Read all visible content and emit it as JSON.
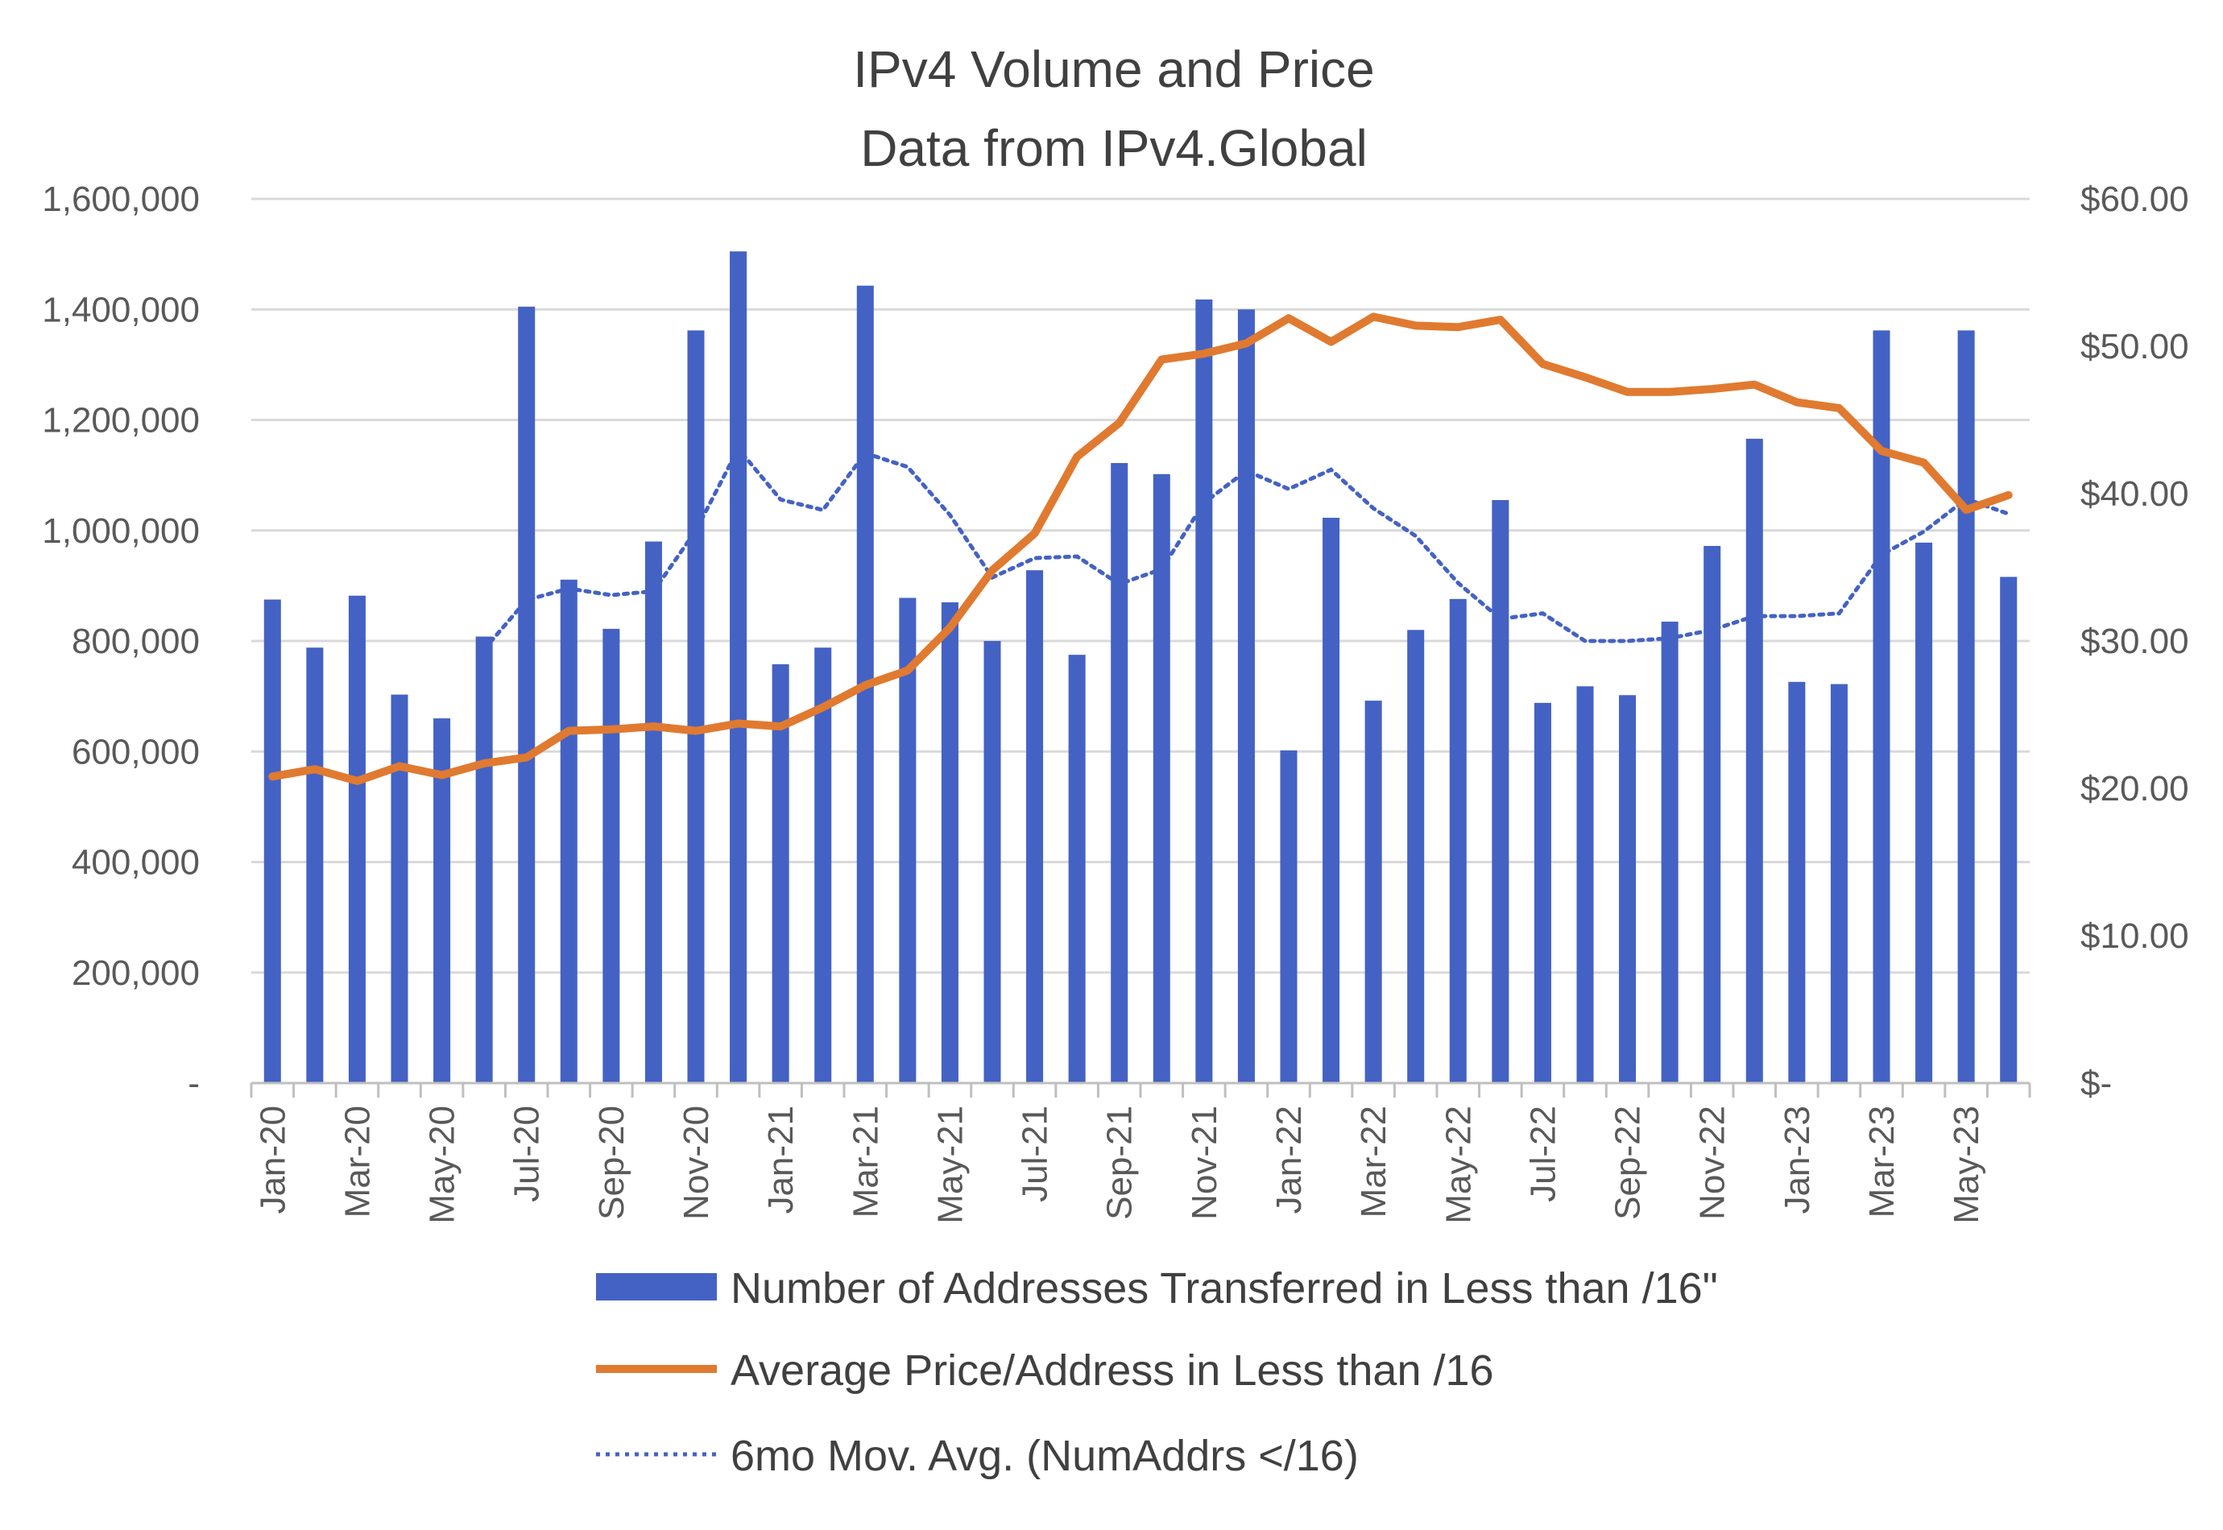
{
  "chart_data": {
    "type": "bar",
    "title": [
      "IPv4 Volume and Price",
      "Data from IPv4.Global"
    ],
    "categories": [
      "Jan-20",
      "Feb-20",
      "Mar-20",
      "Apr-20",
      "May-20",
      "Jun-20",
      "Jul-20",
      "Aug-20",
      "Sep-20",
      "Oct-20",
      "Nov-20",
      "Dec-20",
      "Jan-21",
      "Feb-21",
      "Mar-21",
      "Apr-21",
      "May-21",
      "Jun-21",
      "Jul-21",
      "Aug-21",
      "Sep-21",
      "Oct-21",
      "Nov-21",
      "Dec-21",
      "Jan-22",
      "Feb-22",
      "Mar-22",
      "Apr-22",
      "May-22",
      "Jun-22",
      "Jul-22",
      "Aug-22",
      "Sep-22",
      "Oct-22",
      "Nov-22",
      "Dec-22",
      "Jan-23",
      "Feb-23",
      "Mar-23",
      "Apr-23",
      "May-23",
      "Jun-23"
    ],
    "x_tick_labels": [
      "Jan-20",
      "Mar-20",
      "May-20",
      "Jul-20",
      "Sep-20",
      "Nov-20",
      "Jan-21",
      "Mar-21",
      "May-21",
      "Jul-21",
      "Sep-21",
      "Nov-21",
      "Jan-22",
      "Mar-22",
      "May-22",
      "Jul-22",
      "Sep-22",
      "Nov-22",
      "Jan-23",
      "Mar-23",
      "May-23"
    ],
    "y_left": {
      "min": 0,
      "max": 1600000,
      "tick_labels": [
        "-",
        "200,000",
        "400,000",
        "600,000",
        "800,000",
        "1,000,000",
        "1,200,000",
        "1,400,000",
        "1,600,000"
      ],
      "tick_values": [
        0,
        200000,
        400000,
        600000,
        800000,
        1000000,
        1200000,
        1400000,
        1600000
      ]
    },
    "y_right": {
      "min": 0,
      "max": 60,
      "tick_labels": [
        "$-",
        "$10.00",
        "$20.00",
        "$30.00",
        "$40.00",
        "$50.00",
        "$60.00"
      ],
      "tick_values": [
        0,
        10,
        20,
        30,
        40,
        50,
        60
      ]
    },
    "grid": true,
    "legend_position": "bottom",
    "series": [
      {
        "name": "Number of Addresses Transferred in Less than /16\"",
        "type": "bar",
        "axis": "left",
        "color": "#4462C4",
        "values": [
          875000,
          788000,
          882000,
          703000,
          660000,
          808000,
          1405000,
          911000,
          822000,
          980000,
          1362000,
          1505000,
          758000,
          788000,
          1443000,
          878000,
          870000,
          800000,
          928000,
          775000,
          1122000,
          1102000,
          1418000,
          1400000,
          602000,
          1023000,
          692000,
          820000,
          876000,
          1055000,
          688000,
          718000,
          702000,
          835000,
          972000,
          1166000,
          726000,
          722000,
          1362000,
          978000,
          1362000,
          916000
        ]
      },
      {
        "name": "Average Price/Address in Less than /16",
        "type": "line",
        "axis": "right",
        "color": "#E07A30",
        "values": [
          20.8,
          21.3,
          20.5,
          21.5,
          20.9,
          21.7,
          22.1,
          23.9,
          24.0,
          24.2,
          23.9,
          24.4,
          24.2,
          25.5,
          27.0,
          28.0,
          30.9,
          34.8,
          37.3,
          42.5,
          44.8,
          49.1,
          49.5,
          50.2,
          51.9,
          50.3,
          52.0,
          51.4,
          51.3,
          51.8,
          48.8,
          47.9,
          46.9,
          46.9,
          47.1,
          47.4,
          46.2,
          45.8,
          42.9,
          42.1,
          38.9,
          39.9
        ]
      },
      {
        "name": "6mo Mov. Avg. (NumAddrs </16)",
        "type": "line",
        "style": "dotted",
        "axis": "left",
        "color": "#4462C4",
        "values": [
          null,
          null,
          null,
          null,
          null,
          785000,
          874000,
          895000,
          883000,
          890000,
          1000000,
          1148000,
          1056000,
          1037000,
          1140000,
          1115000,
          1028000,
          915000,
          950000,
          953000,
          903000,
          930000,
          1050000,
          1108000,
          1075000,
          1110000,
          1040000,
          990000,
          905000,
          840000,
          850000,
          800000,
          800000,
          805000,
          820000,
          845000,
          845000,
          850000,
          956000,
          998000,
          1057000,
          1030000
        ]
      }
    ]
  }
}
